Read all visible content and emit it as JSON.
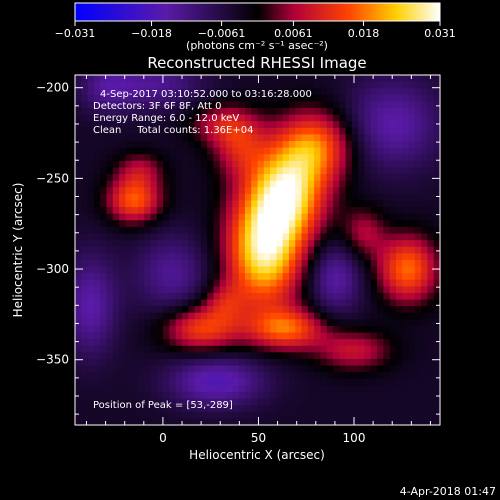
{
  "chart_data": {
    "type": "heatmap",
    "title": "Reconstructed RHESSI Image",
    "xlabel": "Heliocentric X (arcsec)",
    "ylabel": "Heliocentric Y (arcsec)",
    "xlim": [
      -46,
      145
    ],
    "ylim": [
      -386,
      -193
    ],
    "x_ticks": [
      0,
      50,
      100
    ],
    "x_tick_labels": [
      "0",
      "50",
      "100"
    ],
    "y_ticks": [
      -200,
      -250,
      -300,
      -350
    ],
    "y_tick_labels": [
      "−200",
      "−250",
      "−300",
      "−350"
    ],
    "colorbar": {
      "range": [
        -0.031,
        0.031
      ],
      "ticks": [
        -0.031,
        -0.018,
        -0.0061,
        0.0061,
        0.018,
        0.031
      ],
      "tick_labels": [
        "−0.031",
        "−0.018",
        "−0.0061",
        "0.0061",
        "0.018",
        "0.031"
      ],
      "unit_label": "(photons cm⁻² s⁻¹ asec⁻²)",
      "colors": [
        "#0000ff",
        "#5a1aa8",
        "#000000",
        "#b0003a",
        "#ff4400",
        "#ffd000",
        "#ffffff"
      ]
    },
    "annotations": [
      "4-Sep-2017 03:10:52.000 to 03:16:28.000",
      "Detectors: 3F 6F 8F, Att 0",
      "Energy Range: 6.0 - 12.0 keV",
      "Clean     Total counts: 1.36E+04",
      "Position of Peak = [53,-289]"
    ],
    "peak": {
      "x": 53,
      "y": -289
    },
    "sources": [
      {
        "x": 53,
        "y": -290,
        "value": 0.031,
        "sx": 14,
        "sy": 22
      },
      {
        "x": 65,
        "y": -258,
        "value": 0.028,
        "sx": 14,
        "sy": 18
      },
      {
        "x": 80,
        "y": -232,
        "value": 0.02,
        "sx": 14,
        "sy": 14
      },
      {
        "x": 40,
        "y": -232,
        "value": 0.012,
        "sx": 10,
        "sy": 12
      },
      {
        "x": 30,
        "y": -220,
        "value": 0.01,
        "sx": 12,
        "sy": 8
      },
      {
        "x": -15,
        "y": -262,
        "value": 0.02,
        "sx": 10,
        "sy": 9
      },
      {
        "x": -12,
        "y": -245,
        "value": 0.009,
        "sx": 9,
        "sy": 7
      },
      {
        "x": 128,
        "y": -300,
        "value": 0.021,
        "sx": 11,
        "sy": 13
      },
      {
        "x": 105,
        "y": -280,
        "value": 0.01,
        "sx": 8,
        "sy": 10
      },
      {
        "x": 20,
        "y": -333,
        "value": 0.018,
        "sx": 14,
        "sy": 9
      },
      {
        "x": 65,
        "y": -333,
        "value": 0.019,
        "sx": 14,
        "sy": 8
      },
      {
        "x": 100,
        "y": -345,
        "value": 0.012,
        "sx": 14,
        "sy": 8
      },
      {
        "x": 32,
        "y": -318,
        "value": 0.009,
        "sx": 8,
        "sy": 8
      },
      {
        "x": 5,
        "y": -303,
        "value": -0.01,
        "sx": 14,
        "sy": 16
      },
      {
        "x": 90,
        "y": -305,
        "value": -0.012,
        "sx": 10,
        "sy": 14
      },
      {
        "x": -38,
        "y": -320,
        "value": -0.012,
        "sx": 10,
        "sy": 20
      },
      {
        "x": 28,
        "y": -362,
        "value": -0.014,
        "sx": 18,
        "sy": 10
      },
      {
        "x": -5,
        "y": -198,
        "value": -0.01,
        "sx": 18,
        "sy": 10
      },
      {
        "x": 120,
        "y": -220,
        "value": -0.012,
        "sx": 18,
        "sy": 18
      },
      {
        "x": -30,
        "y": -200,
        "value": -0.008,
        "sx": 10,
        "sy": 10
      }
    ],
    "background": -0.0035
  },
  "footer": {
    "date": "4-Apr-2018 01:47"
  }
}
